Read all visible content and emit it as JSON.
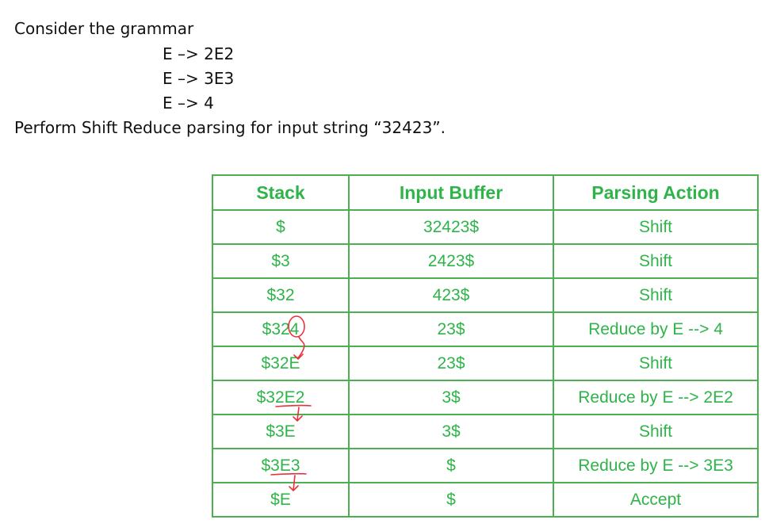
{
  "question": {
    "intro": "Consider the grammar",
    "rules": [
      "E –> 2E2",
      "E –> 3E3",
      "E –> 4"
    ],
    "task": "Perform Shift Reduce parsing for input string “32423”."
  },
  "table": {
    "headers": [
      "Stack",
      "Input Buffer",
      "Parsing Action"
    ],
    "rows": [
      {
        "stack": "$",
        "input": "32423$",
        "action": "Shift"
      },
      {
        "stack": "$3",
        "input": "2423$",
        "action": "Shift"
      },
      {
        "stack": "$32",
        "input": "423$",
        "action": "Shift"
      },
      {
        "stack": "$324",
        "input": "23$",
        "action": "Reduce by E --> 4"
      },
      {
        "stack": "$32E",
        "input": "23$",
        "action": "Shift"
      },
      {
        "stack": "$32E2",
        "input": "3$",
        "action": "Reduce by E --> 2E2"
      },
      {
        "stack": "$3E",
        "input": "3$",
        "action": "Shift"
      },
      {
        "stack": "$3E3",
        "input": "$",
        "action": "Reduce by E --> 3E3"
      },
      {
        "stack": "$E",
        "input": "$",
        "action": "Accept"
      }
    ],
    "colors": {
      "text": "#2fb44a",
      "border": "#4caf50",
      "annotation": "#e8323c"
    }
  }
}
